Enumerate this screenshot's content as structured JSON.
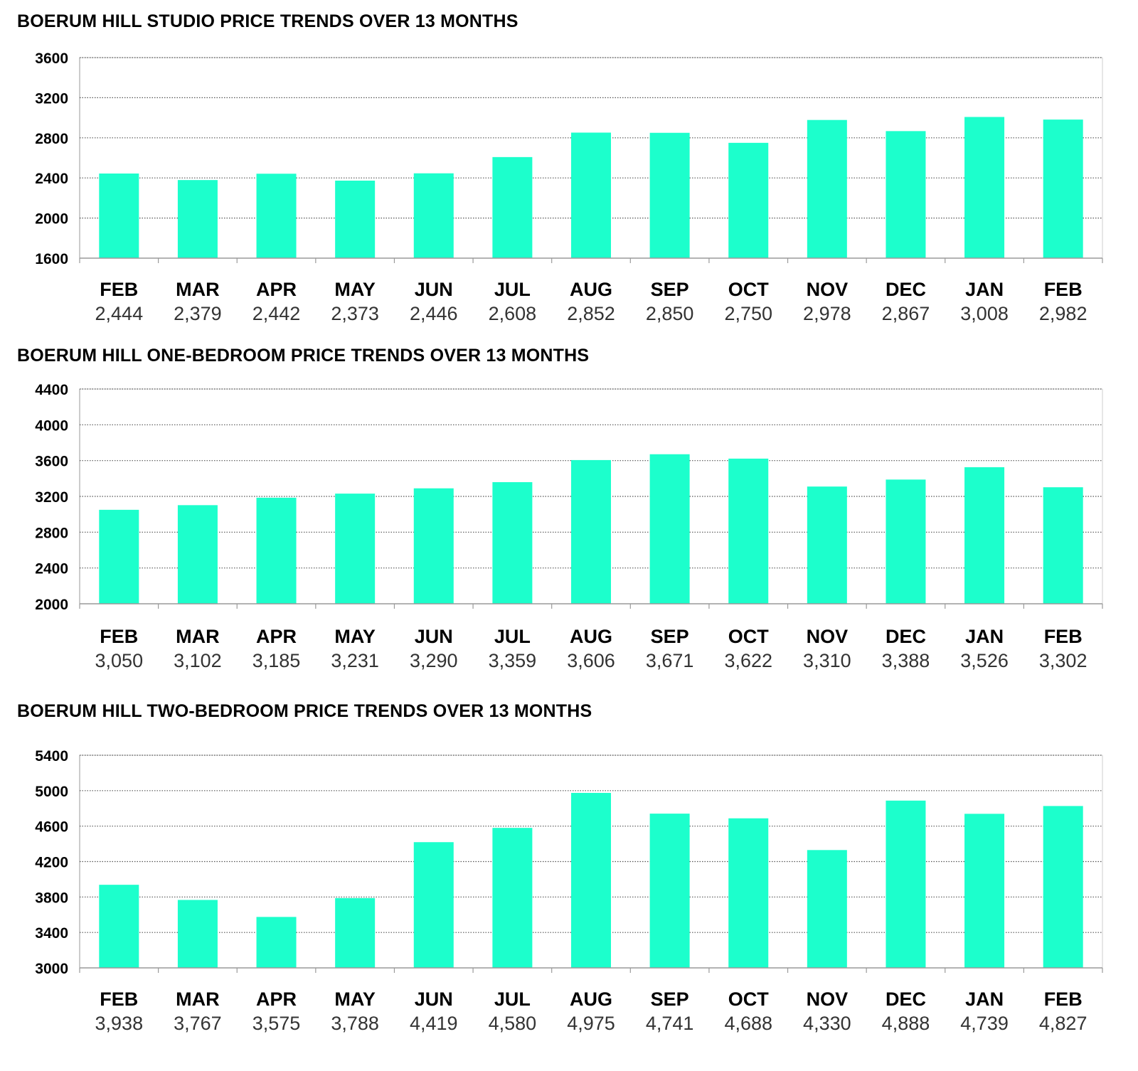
{
  "colors": {
    "bar": "#1cffcc",
    "grid": "#555555",
    "axis": "#9a9a9a"
  },
  "chart_data": [
    {
      "type": "bar",
      "title": "BOERUM HILL STUDIO PRICE TRENDS OVER 13 MONTHS",
      "categories": [
        "FEB",
        "MAR",
        "APR",
        "MAY",
        "JUN",
        "JUL",
        "AUG",
        "SEP",
        "OCT",
        "NOV",
        "DEC",
        "JAN",
        "FEB"
      ],
      "values": [
        2444,
        2379,
        2442,
        2373,
        2446,
        2608,
        2852,
        2850,
        2750,
        2978,
        2867,
        3008,
        2982
      ],
      "value_labels": [
        "2,444",
        "2,379",
        "2,442",
        "2,373",
        "2,446",
        "2,608",
        "2,852",
        "2,850",
        "2,750",
        "2,978",
        "2,867",
        "3,008",
        "2,982"
      ],
      "yticks": [
        "1600",
        "2000",
        "2400",
        "2800",
        "3200",
        "3600"
      ],
      "ylim": [
        1600,
        3600
      ],
      "xlabel": "",
      "ylabel": "",
      "grid": true
    },
    {
      "type": "bar",
      "title": "BOERUM HILL ONE-BEDROOM PRICE TRENDS OVER 13 MONTHS",
      "categories": [
        "FEB",
        "MAR",
        "APR",
        "MAY",
        "JUN",
        "JUL",
        "AUG",
        "SEP",
        "OCT",
        "NOV",
        "DEC",
        "JAN",
        "FEB"
      ],
      "values": [
        3050,
        3102,
        3185,
        3231,
        3290,
        3359,
        3606,
        3671,
        3622,
        3310,
        3388,
        3526,
        3302
      ],
      "value_labels": [
        "3,050",
        "3,102",
        "3,185",
        "3,231",
        "3,290",
        "3,359",
        "3,606",
        "3,671",
        "3,622",
        "3,310",
        "3,388",
        "3,526",
        "3,302"
      ],
      "yticks": [
        "2000",
        "2400",
        "2800",
        "3200",
        "3600",
        "4000",
        "4400"
      ],
      "ylim": [
        2000,
        4400
      ],
      "xlabel": "",
      "ylabel": "",
      "grid": true
    },
    {
      "type": "bar",
      "title": "BOERUM HILL TWO-BEDROOM PRICE TRENDS OVER 13 MONTHS",
      "categories": [
        "FEB",
        "MAR",
        "APR",
        "MAY",
        "JUN",
        "JUL",
        "AUG",
        "SEP",
        "OCT",
        "NOV",
        "DEC",
        "JAN",
        "FEB"
      ],
      "values": [
        3938,
        3767,
        3575,
        3788,
        4419,
        4580,
        4975,
        4741,
        4688,
        4330,
        4888,
        4739,
        4827
      ],
      "value_labels": [
        "3,938",
        "3,767",
        "3,575",
        "3,788",
        "4,419",
        "4,580",
        "4,975",
        "4,741",
        "4,688",
        "4,330",
        "4,888",
        "4,739",
        "4,827"
      ],
      "yticks": [
        "3000",
        "3400",
        "3800",
        "4200",
        "4600",
        "5000",
        "5400"
      ],
      "ylim": [
        3000,
        5400
      ],
      "xlabel": "",
      "ylabel": "",
      "grid": true
    }
  ]
}
